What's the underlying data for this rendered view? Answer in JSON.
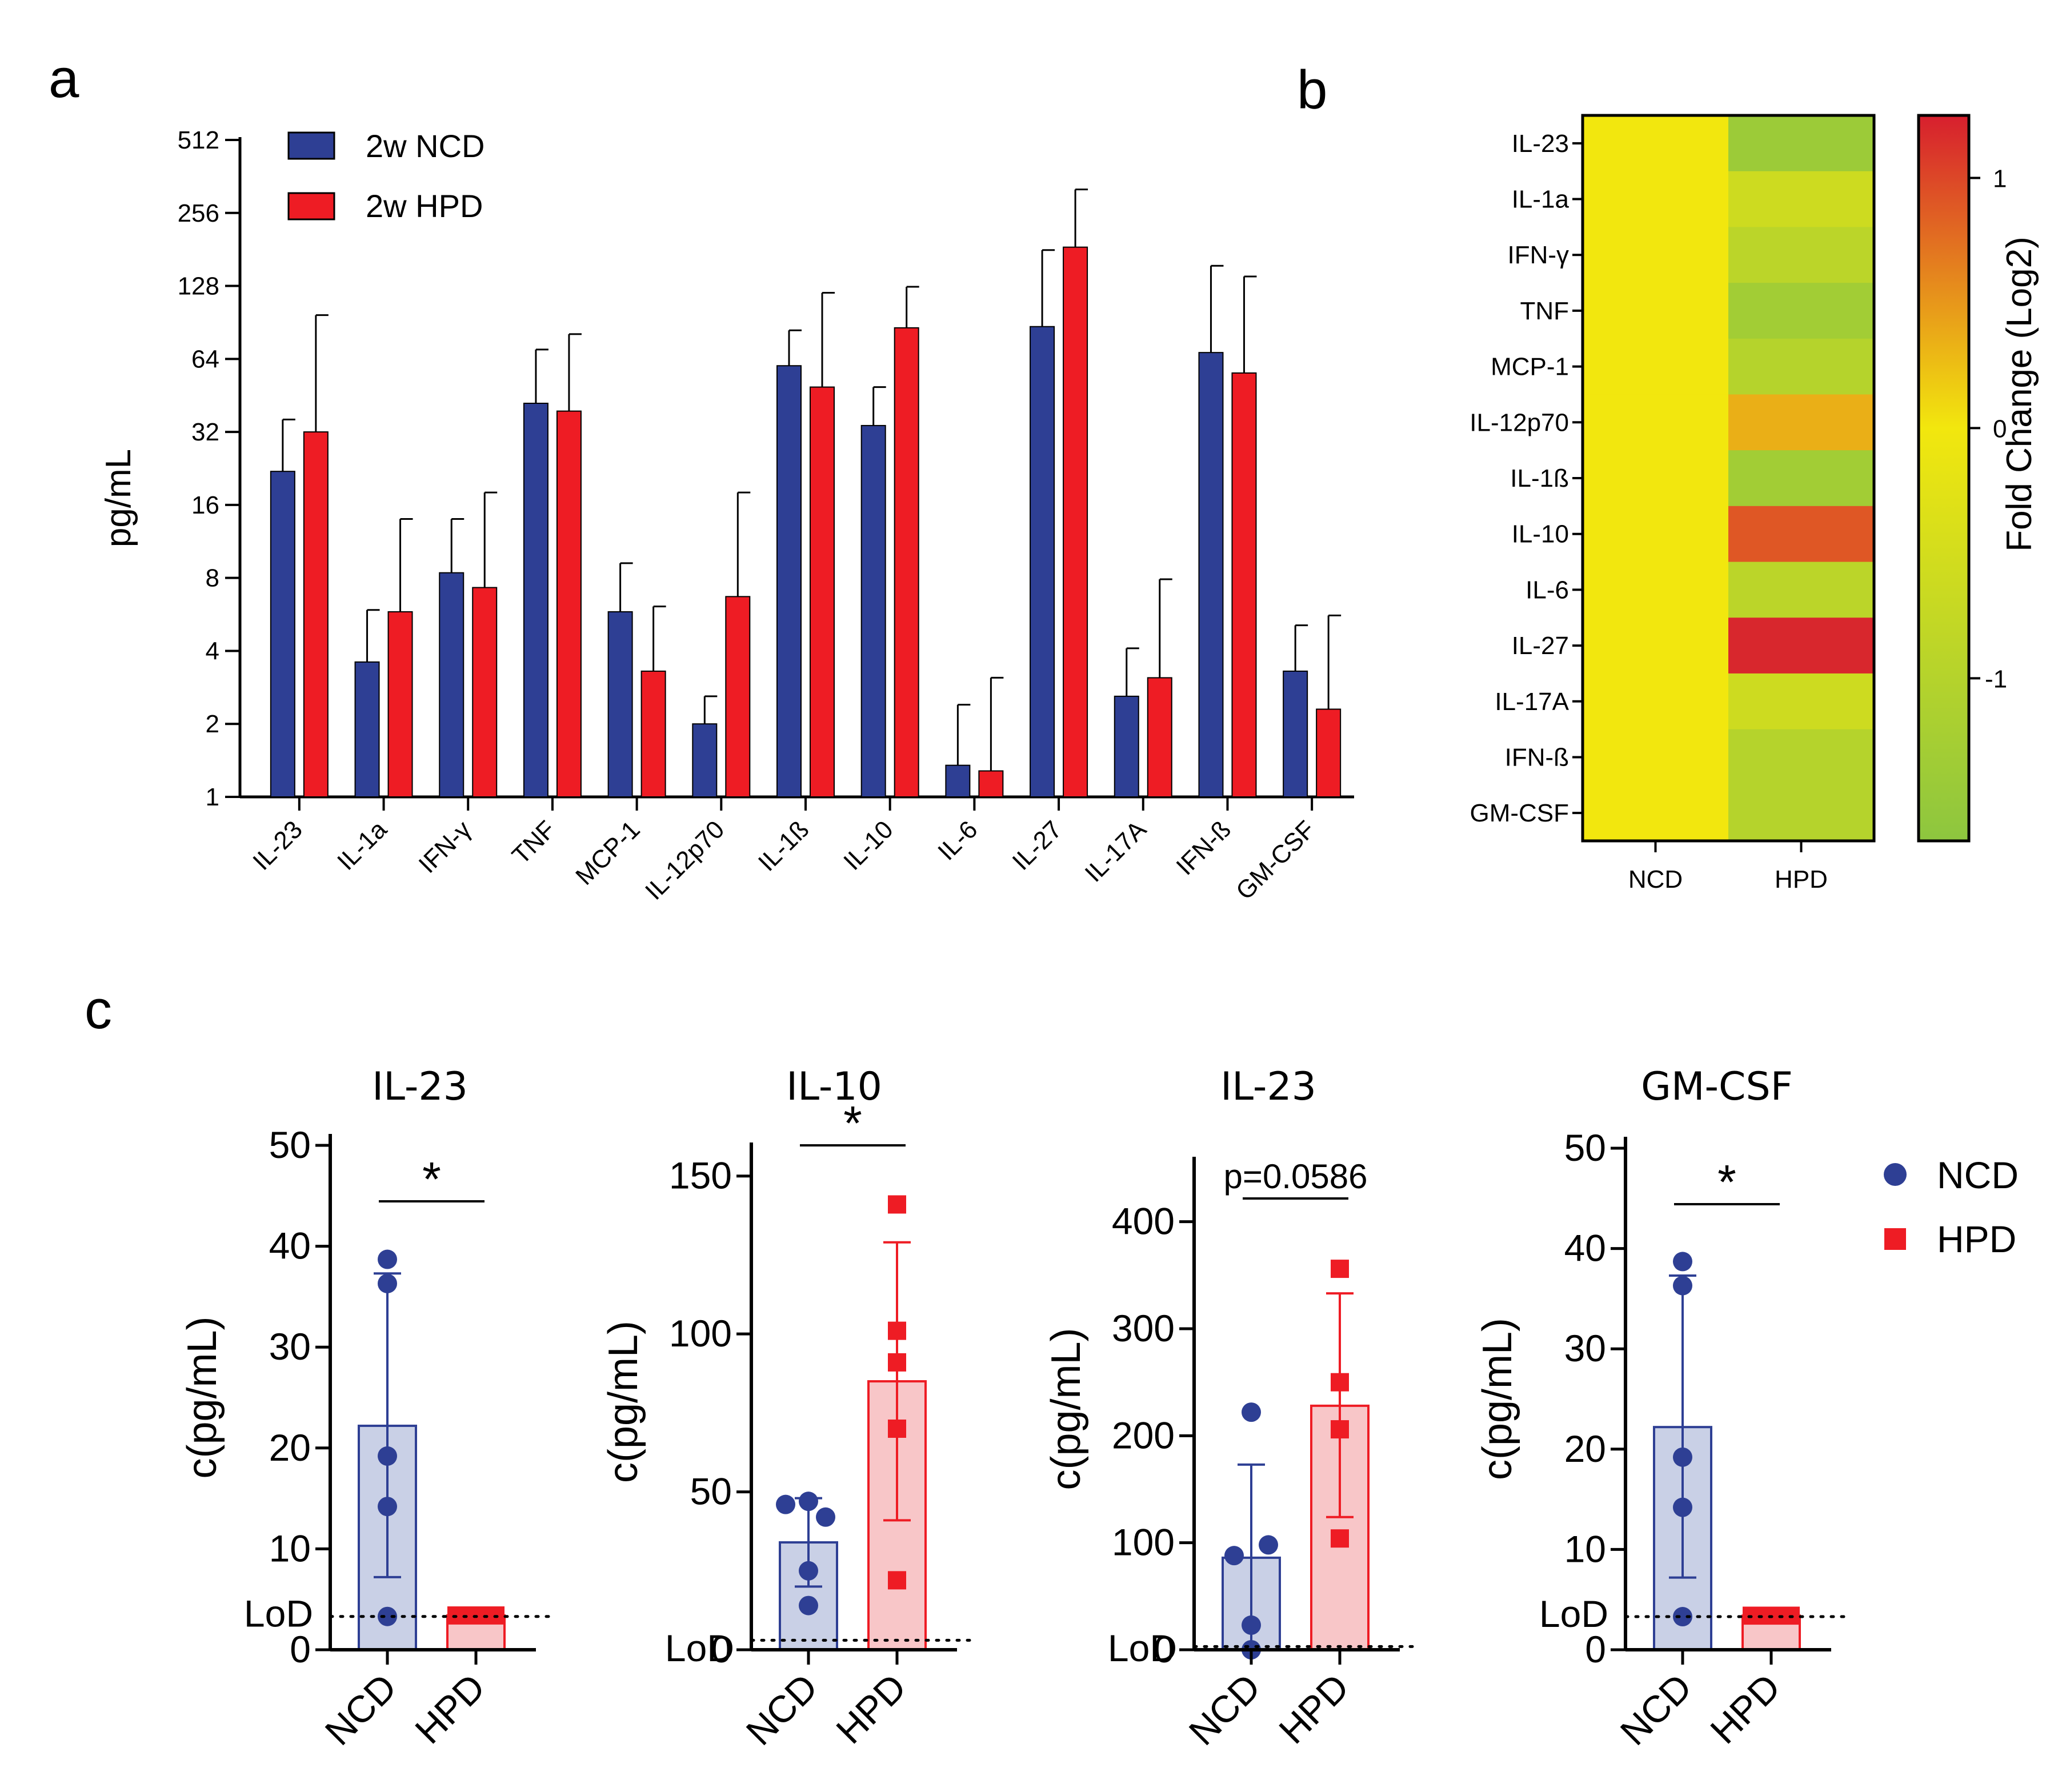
{
  "panels": {
    "a": "a",
    "b": "b",
    "c": "c"
  },
  "colors": {
    "ncd": "#2E3F94",
    "hpd": "#EE1C24",
    "ncd_light": "#C9D0E6",
    "hpd_light": "#F8C6C8"
  },
  "chart_data": [
    {
      "id": "a",
      "type": "bar",
      "title": "",
      "ylabel": "pg/mL",
      "xlabel": "",
      "yscale": "log2",
      "ylim": [
        1,
        512
      ],
      "yticks": [
        {
          "value": 1,
          "label": "1"
        },
        {
          "value": 2,
          "label": "2"
        },
        {
          "value": 4,
          "label": "4"
        },
        {
          "value": 8,
          "label": "8"
        },
        {
          "value": 16,
          "label": "16"
        },
        {
          "value": 32,
          "label": "32"
        },
        {
          "value": 64,
          "label": "64"
        },
        {
          "value": 128,
          "label": "128"
        },
        {
          "value": 256,
          "label": "256"
        },
        {
          "value": 512,
          "label": "512"
        }
      ],
      "categories": [
        "IL-23",
        "IL-1a",
        "IFN-γ",
        "TNF",
        "MCP-1",
        "IL-12p70",
        "IL-1ß",
        "IL-10",
        "IL-6",
        "IL-27",
        "IL-17A",
        "IFN-ß",
        "GM-CSF"
      ],
      "legend": [
        "2w NCD",
        "2w HPD"
      ],
      "legend_position": "top-left",
      "series": [
        {
          "name": "2w NCD",
          "color": "#2E3F94",
          "values": [
            22,
            3.6,
            8.4,
            42,
            5.8,
            2.0,
            60,
            34,
            1.35,
            87,
            2.6,
            68,
            3.3
          ],
          "errors_upper": [
            36,
            5.9,
            14,
            70,
            9.2,
            2.6,
            84,
            49,
            2.4,
            180,
            4.1,
            155,
            5.1
          ]
        },
        {
          "name": "2w HPD",
          "color": "#EE1C24",
          "values": [
            32,
            5.8,
            7.3,
            39,
            3.3,
            6.7,
            49,
            86,
            1.28,
            185,
            3.1,
            56,
            2.3
          ],
          "errors_upper": [
            97,
            14,
            18,
            81,
            6.1,
            18,
            120,
            127,
            3.1,
            320,
            7.9,
            140,
            5.6
          ]
        }
      ]
    },
    {
      "id": "b",
      "type": "heatmap",
      "title": "",
      "columns": [
        "NCD",
        "HPD"
      ],
      "rows": [
        "IL-23",
        "IL-1a",
        "IFN-γ",
        "TNF",
        "MCP-1",
        "IL-12p70",
        "IL-1ß",
        "IL-10",
        "IL-6",
        "IL-27",
        "IL-17A",
        "IFN-ß",
        "GM-CSF"
      ],
      "values": [
        [
          0,
          -1.4
        ],
        [
          0,
          -0.6
        ],
        [
          0,
          -0.9
        ],
        [
          0,
          -1.3
        ],
        [
          0,
          -1.0
        ],
        [
          0,
          0.35
        ],
        [
          0,
          -1.3
        ],
        [
          0,
          0.9
        ],
        [
          0,
          -0.9
        ],
        [
          0,
          1.2
        ],
        [
          0,
          -0.6
        ],
        [
          0,
          -1.0
        ],
        [
          0,
          -1.0
        ]
      ],
      "colorbar": {
        "label": "Fold Change (Log2)",
        "range": [
          -1.65,
          1.25
        ],
        "ticks": [
          {
            "value": 1,
            "label": "1"
          },
          {
            "value": 0,
            "label": "0"
          },
          {
            "value": -1,
            "label": "-1"
          }
        ],
        "colors": [
          "#8DC63F",
          "#F2E70E",
          "#D71F2E"
        ]
      }
    },
    {
      "id": "c1",
      "type": "bar",
      "title": "IL-23",
      "ylabel": "c(pg/mL)",
      "categories": [
        "NCD",
        "HPD"
      ],
      "ylim": [
        0,
        50
      ],
      "yticks": [
        0,
        10,
        20,
        30,
        40,
        50
      ],
      "lod": 3.3,
      "lod_label": "LoD",
      "significance": "*",
      "means": [
        22.2,
        3.4
      ],
      "err_upper": [
        37.3,
        4.3
      ],
      "err_lower": [
        7.2,
        2.5
      ],
      "points": [
        [
          38.7,
          36.3,
          19.2,
          14.2,
          3.3
        ],
        [
          3.4,
          3.4,
          3.4,
          3.4,
          3.4
        ]
      ]
    },
    {
      "id": "c2",
      "type": "bar",
      "title": "IL-10",
      "ylabel": "c(pg/mL)",
      "categories": [
        "NCD",
        "HPD"
      ],
      "ylim": [
        0,
        157
      ],
      "yticks": [
        0,
        50,
        100,
        150
      ],
      "lod": 3,
      "lod_label": "LoD",
      "significance": "*",
      "means": [
        34,
        85
      ],
      "err_upper": [
        48,
        129
      ],
      "err_lower": [
        20,
        41
      ],
      "points": [
        [
          46,
          47,
          42,
          25,
          14
        ],
        [
          141,
          101,
          91,
          70,
          22
        ]
      ]
    },
    {
      "id": "c3",
      "type": "bar",
      "title": "IL-23",
      "ylabel": "c(pg/mL)",
      "categories": [
        "NCD",
        "HPD"
      ],
      "ylim": [
        0,
        450
      ],
      "yticks": [
        0,
        100,
        200,
        300,
        400
      ],
      "lod": 3,
      "lod_label": "LoD",
      "significance": "p=0.0586",
      "means": [
        86,
        228
      ],
      "err_upper": [
        173,
        333
      ],
      "err_lower": [
        0,
        124
      ],
      "points": [
        [
          222,
          98,
          88,
          23,
          0
        ],
        [
          356,
          250,
          206,
          104
        ]
      ]
    },
    {
      "id": "c4",
      "type": "bar",
      "title": "GM-CSF",
      "ylabel": "c(pg/mL)",
      "categories": [
        "NCD",
        "HPD"
      ],
      "ylim": [
        0,
        50
      ],
      "yticks": [
        0,
        10,
        20,
        30,
        40,
        50
      ],
      "lod": 3.3,
      "lod_label": "LoD",
      "significance": "*",
      "means": [
        22.2,
        3.4
      ],
      "err_upper": [
        37.3,
        4.3
      ],
      "err_lower": [
        7.2,
        2.5
      ],
      "points": [
        [
          38.7,
          36.3,
          19.2,
          14.2,
          3.3
        ],
        [
          3.4,
          3.4,
          3.4,
          3.4,
          3.4
        ]
      ]
    }
  ],
  "legend_c": [
    "NCD",
    "HPD"
  ]
}
